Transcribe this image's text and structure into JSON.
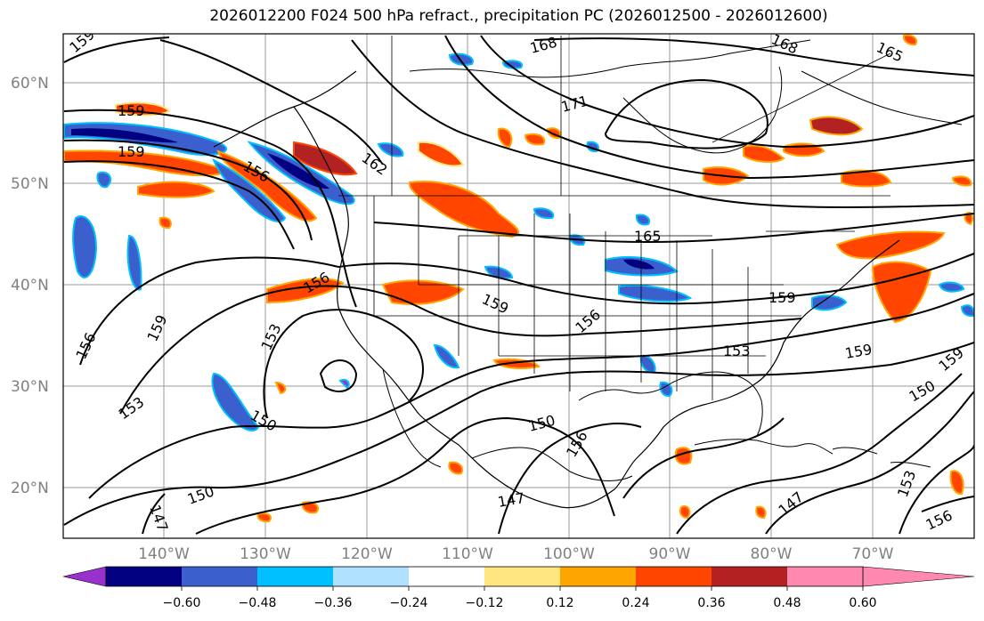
{
  "title": "2026012200 F024 500 hPa refract., precipitation PC (2026012500 - 2026012600)",
  "map": {
    "lat_labels": [
      "60°N",
      "50°N",
      "40°N",
      "30°N",
      "20°N"
    ],
    "lon_labels": [
      "140°W",
      "130°W",
      "120°W",
      "110°W",
      "100°W",
      "90°W",
      "80°W",
      "70°W"
    ],
    "contour_labels": [
      "159",
      "159",
      "159",
      "156",
      "168",
      "165",
      "171",
      "168",
      "162",
      "165",
      "156",
      "159",
      "159",
      "156",
      "153",
      "156",
      "153",
      "159",
      "159",
      "153",
      "150",
      "150",
      "150",
      "156",
      "150",
      "147",
      "147",
      "147",
      "153",
      "156",
      "159"
    ]
  },
  "colorbar": {
    "ticks": [
      "−0.60",
      "−0.48",
      "−0.36",
      "−0.24",
      "−0.12",
      "0.12",
      "0.24",
      "0.36",
      "0.48",
      "0.60"
    ],
    "colors": [
      "#9932cc",
      "#000080",
      "#3b5fcd",
      "#00bfff",
      "#b0e0ff",
      "#ffffff",
      "#ffe680",
      "#ffa500",
      "#ff4500",
      "#b22222",
      "#ff88b0"
    ]
  }
}
